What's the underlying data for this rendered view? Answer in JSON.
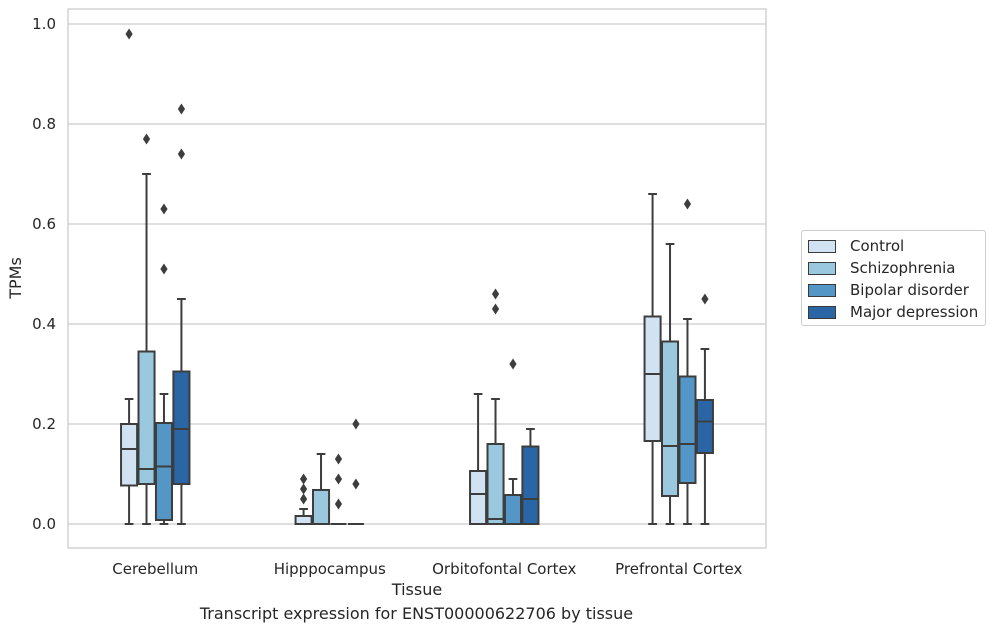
{
  "chart_data": {
    "type": "box",
    "xlabel": "Tissue",
    "ylabel": "TPMs",
    "ylim": [
      -0.045,
      1.03
    ],
    "yticks": [
      "0.0",
      "0.2",
      "0.4",
      "0.6",
      "0.8",
      "1.0"
    ],
    "grid": true,
    "legend_position": "right-outside",
    "categories": [
      "Cerebellum",
      "Hipppocampus",
      "Orbitofontal Cortex",
      "Prefrontal Cortex"
    ],
    "series": [
      {
        "name": "Control",
        "color": "#d1e2f2",
        "boxes": [
          {
            "whislo": 0.0,
            "q1": 0.077,
            "med": 0.15,
            "q3": 0.2,
            "whishi": 0.25,
            "fliers": [
              0.98
            ]
          },
          {
            "whislo": 0.0,
            "q1": 0.0,
            "med": 0.0,
            "q3": 0.016,
            "whishi": 0.03,
            "fliers": [
              0.05,
              0.07,
              0.09
            ]
          },
          {
            "whislo": 0.0,
            "q1": 0.0,
            "med": 0.06,
            "q3": 0.106,
            "whishi": 0.26,
            "fliers": []
          },
          {
            "whislo": 0.0,
            "q1": 0.166,
            "med": 0.3,
            "q3": 0.415,
            "whishi": 0.66,
            "fliers": []
          }
        ]
      },
      {
        "name": "Schizophrenia",
        "color": "#9ac8df",
        "boxes": [
          {
            "whislo": 0.0,
            "q1": 0.08,
            "med": 0.11,
            "q3": 0.345,
            "whishi": 0.7,
            "fliers": [
              0.77
            ]
          },
          {
            "whislo": 0.0,
            "q1": 0.0,
            "med": 0.0,
            "q3": 0.068,
            "whishi": 0.14,
            "fliers": []
          },
          {
            "whislo": 0.0,
            "q1": 0.0,
            "med": 0.01,
            "q3": 0.16,
            "whishi": 0.25,
            "fliers": [
              0.43,
              0.46
            ]
          },
          {
            "whislo": 0.0,
            "q1": 0.056,
            "med": 0.156,
            "q3": 0.365,
            "whishi": 0.56,
            "fliers": []
          }
        ]
      },
      {
        "name": "Bipolar disorder",
        "color": "#5497c6",
        "boxes": [
          {
            "whislo": 0.0,
            "q1": 0.008,
            "med": 0.115,
            "q3": 0.202,
            "whishi": 0.26,
            "fliers": [
              0.51,
              0.63
            ]
          },
          {
            "whislo": 0.0,
            "q1": 0.0,
            "med": 0.0,
            "q3": 0.0,
            "whishi": 0.0,
            "fliers": [
              0.04,
              0.09,
              0.13
            ]
          },
          {
            "whislo": 0.0,
            "q1": 0.0,
            "med": 0.0,
            "q3": 0.058,
            "whishi": 0.09,
            "fliers": [
              0.32
            ]
          },
          {
            "whislo": 0.0,
            "q1": 0.082,
            "med": 0.16,
            "q3": 0.295,
            "whishi": 0.41,
            "fliers": [
              0.64
            ]
          }
        ]
      },
      {
        "name": "Major depression",
        "color": "#2a66a5",
        "boxes": [
          {
            "whislo": 0.0,
            "q1": 0.08,
            "med": 0.19,
            "q3": 0.305,
            "whishi": 0.45,
            "fliers": [
              0.74,
              0.83
            ]
          },
          {
            "whislo": 0.0,
            "q1": 0.0,
            "med": 0.0,
            "q3": 0.0,
            "whishi": 0.0,
            "fliers": [
              0.08,
              0.2
            ]
          },
          {
            "whislo": 0.0,
            "q1": 0.0,
            "med": 0.05,
            "q3": 0.155,
            "whishi": 0.19,
            "fliers": []
          },
          {
            "whislo": 0.0,
            "q1": 0.142,
            "med": 0.205,
            "q3": 0.248,
            "whishi": 0.35,
            "fliers": [
              0.45
            ]
          }
        ]
      }
    ]
  },
  "caption": "Transcript expression for ENST00000622706 by tissue"
}
